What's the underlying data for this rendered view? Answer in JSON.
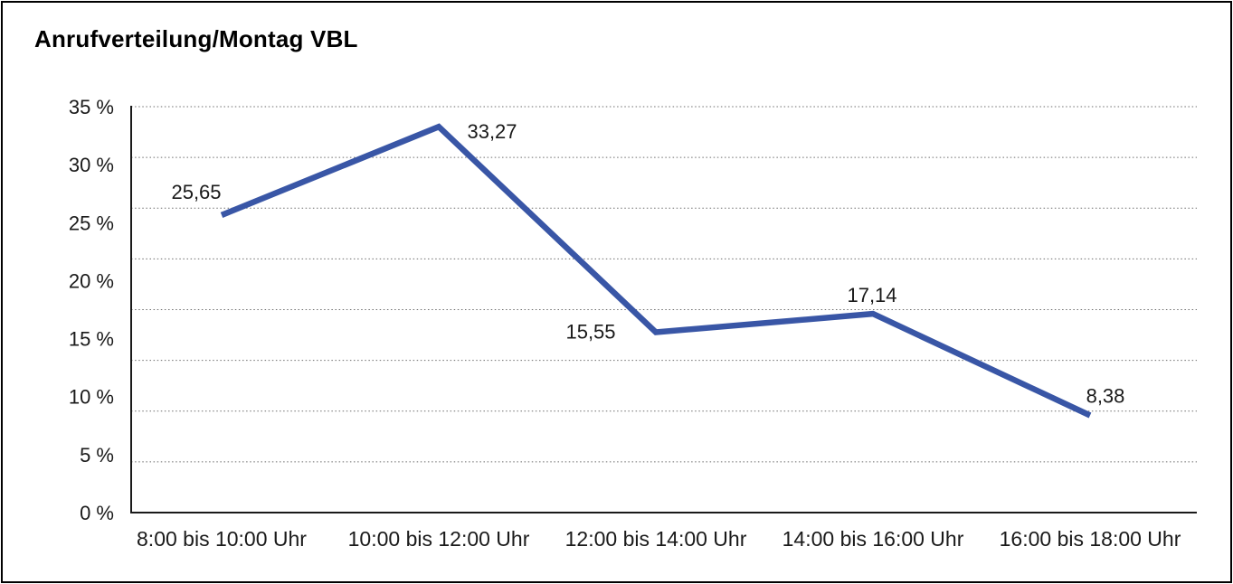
{
  "colors": {
    "line": "#3956a6",
    "grid": "#6e6e6e",
    "axis": "#1a1a1a",
    "text": "#1a1a1a",
    "frame": "#000000",
    "background": "#ffffff"
  },
  "chart_data": {
    "type": "line",
    "title": "Anrufverteilung/Montag VBL",
    "categories": [
      "8:00 bis 10:00 Uhr",
      "10:00 bis 12:00 Uhr",
      "12:00 bis 14:00 Uhr",
      "14:00 bis 16:00 Uhr",
      "16:00 bis 18:00 Uhr"
    ],
    "values": [
      25.65,
      33.27,
      15.55,
      17.14,
      8.38
    ],
    "value_labels": [
      "25,65",
      "33,27",
      "15,55",
      "17,14",
      "8,38"
    ],
    "xlabel": "",
    "ylabel": "",
    "ylim": [
      0,
      35
    ],
    "ytick_step": 5,
    "ytick_labels": [
      "35 %",
      "30 %",
      "25 %",
      "20 %",
      "15 %",
      "10 %",
      "5 %",
      "0 %"
    ],
    "grid": "horizontal-dotted",
    "grid_divisions": 8,
    "legend": "none",
    "unit": "%"
  }
}
